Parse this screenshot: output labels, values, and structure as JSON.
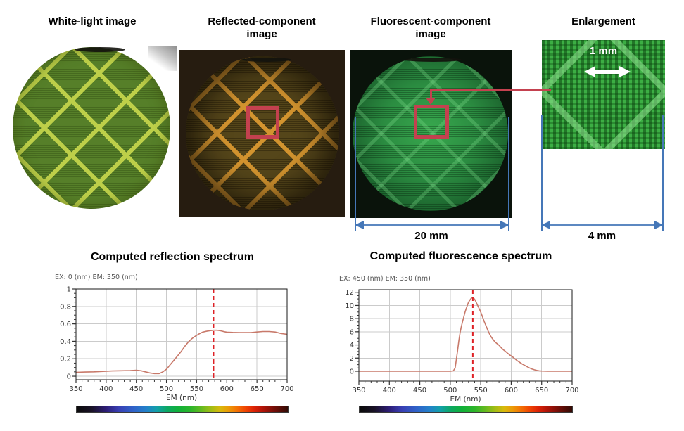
{
  "panels": {
    "white_light": {
      "title": "White-light image"
    },
    "reflected": {
      "title": "Reflected-component image"
    },
    "fluorescent": {
      "title": "Fluorescent-component image"
    },
    "enlargement": {
      "title": "Enlargement",
      "scale_label": "1 mm"
    }
  },
  "dimensions": {
    "sample_width": "20 mm",
    "enlargement_width": "4 mm"
  },
  "colors": {
    "anno-red": "#c4414f",
    "dim-blue": "#4577b8",
    "wl-cell": "#567f29",
    "wl-line": "#bdcf49",
    "rf-bg": "#261c10",
    "rf-cell": "#55461a",
    "rf-line": "#d3942f",
    "fl-bg": "#0a130b",
    "en-base": "#3cae44",
    "en-diamond": "#8ade8b99",
    "wl-bg": "#ffffff"
  },
  "colorbar": {
    "stops": [
      [
        0,
        "#0b0b0b"
      ],
      [
        7,
        "#191226"
      ],
      [
        14,
        "#2d1d77"
      ],
      [
        20,
        "#3940b4"
      ],
      [
        27,
        "#2f63c9"
      ],
      [
        33,
        "#2381c9"
      ],
      [
        38,
        "#12a0a8"
      ],
      [
        43,
        "#0ca862"
      ],
      [
        48,
        "#10b03a"
      ],
      [
        54,
        "#2cb52b"
      ],
      [
        59,
        "#63ba20"
      ],
      [
        64,
        "#a6bd14"
      ],
      [
        68,
        "#d8b90c"
      ],
      [
        72,
        "#eb9a07"
      ],
      [
        76,
        "#f37104"
      ],
      [
        80,
        "#ef4503"
      ],
      [
        84,
        "#dc2306"
      ],
      [
        88,
        "#b31408"
      ],
      [
        93,
        "#7a0f08"
      ],
      [
        100,
        "#320b05"
      ]
    ]
  },
  "chart_data": [
    {
      "type": "line",
      "title": "Computed reflection spectrum",
      "header": "EX: 0 (nm) EM: 350 (nm)",
      "xlabel": "EM (nm)",
      "xlim": [
        350,
        700
      ],
      "ylim": [
        -0.04,
        1.0
      ],
      "x_major_ticks": [
        350,
        400,
        450,
        500,
        550,
        600,
        650,
        700
      ],
      "x_minor_step": 10,
      "y_ticks": [
        0,
        0.2,
        0.4,
        0.6,
        0.8,
        1
      ],
      "y_tick_labels": [
        "0",
        "0.2",
        "0.4",
        "0.6",
        "0.8",
        "1"
      ],
      "y_minor_step": 0.05,
      "grid": true,
      "legend": "none",
      "marker_x": 578,
      "line_color": "#c8796a",
      "marker_color": "#de2126",
      "points": [
        [
          350,
          0.045
        ],
        [
          365,
          0.048
        ],
        [
          380,
          0.05
        ],
        [
          395,
          0.055
        ],
        [
          410,
          0.06
        ],
        [
          425,
          0.062
        ],
        [
          440,
          0.065
        ],
        [
          450,
          0.068
        ],
        [
          458,
          0.062
        ],
        [
          465,
          0.05
        ],
        [
          472,
          0.038
        ],
        [
          480,
          0.03
        ],
        [
          488,
          0.03
        ],
        [
          494,
          0.05
        ],
        [
          500,
          0.08
        ],
        [
          506,
          0.13
        ],
        [
          512,
          0.18
        ],
        [
          518,
          0.23
        ],
        [
          524,
          0.28
        ],
        [
          530,
          0.34
        ],
        [
          536,
          0.39
        ],
        [
          542,
          0.43
        ],
        [
          548,
          0.46
        ],
        [
          554,
          0.485
        ],
        [
          560,
          0.505
        ],
        [
          566,
          0.515
        ],
        [
          572,
          0.522
        ],
        [
          578,
          0.527
        ],
        [
          584,
          0.527
        ],
        [
          590,
          0.52
        ],
        [
          596,
          0.51
        ],
        [
          600,
          0.505
        ],
        [
          610,
          0.502
        ],
        [
          620,
          0.5
        ],
        [
          630,
          0.5
        ],
        [
          640,
          0.5
        ],
        [
          650,
          0.507
        ],
        [
          660,
          0.512
        ],
        [
          670,
          0.512
        ],
        [
          680,
          0.507
        ],
        [
          690,
          0.49
        ],
        [
          700,
          0.48
        ]
      ]
    },
    {
      "type": "line",
      "title": "Computed fluorescence spectrum",
      "header": "EX: 450 (nm) EM: 350 (nm)",
      "xlabel": "EM (nm)",
      "xlim": [
        350,
        700
      ],
      "ylim": [
        -1.5,
        12.4
      ],
      "x_major_ticks": [
        350,
        400,
        450,
        500,
        550,
        600,
        650,
        700
      ],
      "x_minor_step": 10,
      "y_ticks": [
        0,
        2,
        4,
        6,
        8,
        10,
        12
      ],
      "y_tick_labels": [
        "0",
        "2",
        "4",
        "6",
        "8",
        "10",
        "12"
      ],
      "y_minor_step": 0.5,
      "grid": true,
      "legend": "none",
      "marker_x": 537,
      "line_color": "#c8796a",
      "marker_color": "#de2126",
      "points": [
        [
          350,
          0
        ],
        [
          380,
          0
        ],
        [
          420,
          0
        ],
        [
          460,
          0
        ],
        [
          490,
          0
        ],
        [
          500,
          0
        ],
        [
          505,
          0.05
        ],
        [
          508,
          0.5
        ],
        [
          510,
          1.8
        ],
        [
          512,
          3.1
        ],
        [
          514,
          4.6
        ],
        [
          516,
          5.8
        ],
        [
          518,
          6.7
        ],
        [
          520,
          7.5
        ],
        [
          522,
          8.2
        ],
        [
          524,
          8.9
        ],
        [
          526,
          9.5
        ],
        [
          528,
          10.0
        ],
        [
          530,
          10.5
        ],
        [
          532,
          10.8
        ],
        [
          534,
          11.05
        ],
        [
          536,
          11.2
        ],
        [
          538,
          11.15
        ],
        [
          540,
          10.95
        ],
        [
          542,
          10.6
        ],
        [
          544,
          10.2
        ],
        [
          546,
          9.8
        ],
        [
          548,
          9.4
        ],
        [
          550,
          9.0
        ],
        [
          552,
          8.5
        ],
        [
          554,
          8.0
        ],
        [
          556,
          7.5
        ],
        [
          558,
          7.05
        ],
        [
          560,
          6.6
        ],
        [
          562,
          6.15
        ],
        [
          564,
          5.75
        ],
        [
          566,
          5.4
        ],
        [
          568,
          5.1
        ],
        [
          570,
          4.85
        ],
        [
          572,
          4.6
        ],
        [
          574,
          4.4
        ],
        [
          576,
          4.25
        ],
        [
          578,
          4.1
        ],
        [
          580,
          3.95
        ],
        [
          582,
          3.75
        ],
        [
          584,
          3.55
        ],
        [
          586,
          3.35
        ],
        [
          588,
          3.2
        ],
        [
          590,
          3.05
        ],
        [
          594,
          2.75
        ],
        [
          598,
          2.45
        ],
        [
          602,
          2.2
        ],
        [
          606,
          1.9
        ],
        [
          610,
          1.6
        ],
        [
          614,
          1.35
        ],
        [
          618,
          1.1
        ],
        [
          622,
          0.9
        ],
        [
          626,
          0.7
        ],
        [
          630,
          0.5
        ],
        [
          634,
          0.35
        ],
        [
          638,
          0.22
        ],
        [
          642,
          0.12
        ],
        [
          646,
          0.06
        ],
        [
          650,
          0.03
        ],
        [
          660,
          0
        ],
        [
          680,
          0
        ],
        [
          700,
          0
        ]
      ]
    }
  ]
}
